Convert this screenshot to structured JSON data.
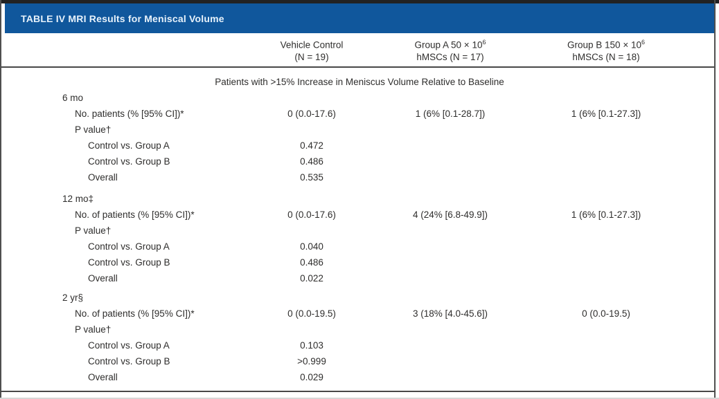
{
  "table": {
    "title": "TABLE IV MRI Results for Meniscal Volume",
    "columns": [
      {
        "line1": "Vehicle Control",
        "line2": "(N = 19)"
      },
      {
        "line1": "Group A 50 × 10",
        "sup": "6",
        "line2": "hMSCs (N = 17)"
      },
      {
        "line1": "Group B 150 × 10",
        "sup": "6",
        "line2": "hMSCs (N = 18)"
      }
    ],
    "subheader": "Patients with >15% Increase in Meniscus Volume Relative to Baseline",
    "sections": [
      {
        "heading": "6 mo",
        "rows": [
          {
            "label": "No. patients (% [95% CI])*",
            "vehicle": "0 (0.0-17.6)",
            "groupA": "1 (6% [0.1-28.7])",
            "groupB": "1 (6% [0.1-27.3])"
          },
          {
            "label": "P value†"
          },
          {
            "label": "Control vs. Group A",
            "vehicle": "0.472"
          },
          {
            "label": "Control vs. Group B",
            "vehicle": "0.486"
          },
          {
            "label": "Overall",
            "vehicle": "0.535"
          }
        ]
      },
      {
        "heading": "12 mo‡",
        "rows": [
          {
            "label": "No. of patients (% [95% CI])*",
            "vehicle": "0 (0.0-17.6)",
            "groupA": "4 (24% [6.8-49.9])",
            "groupB": "1 (6% [0.1-27.3])"
          },
          {
            "label": "P value†"
          },
          {
            "label": "Control vs. Group A",
            "vehicle": "0.040"
          },
          {
            "label": "Control vs. Group B",
            "vehicle": "0.486"
          },
          {
            "label": "Overall",
            "vehicle": "0.022"
          }
        ]
      },
      {
        "heading": "2 yr§",
        "rows": [
          {
            "label": "No. of patients (% [95% CI])*",
            "vehicle": "0 (0.0-19.5)",
            "groupA": "3 (18% [4.0-45.6])",
            "groupB": "0 (0.0-19.5)"
          },
          {
            "label": "P value†"
          },
          {
            "label": "Control vs. Group A",
            "vehicle": "0.103"
          },
          {
            "label": "Control vs. Group B",
            "vehicle": ">0.999"
          },
          {
            "label": "Overall",
            "vehicle": "0.029"
          }
        ]
      }
    ]
  },
  "colors": {
    "header_bar": "#10579C",
    "header_text": "#E7F2FB",
    "rule": "#474747",
    "body_text": "#2E2D2C"
  }
}
